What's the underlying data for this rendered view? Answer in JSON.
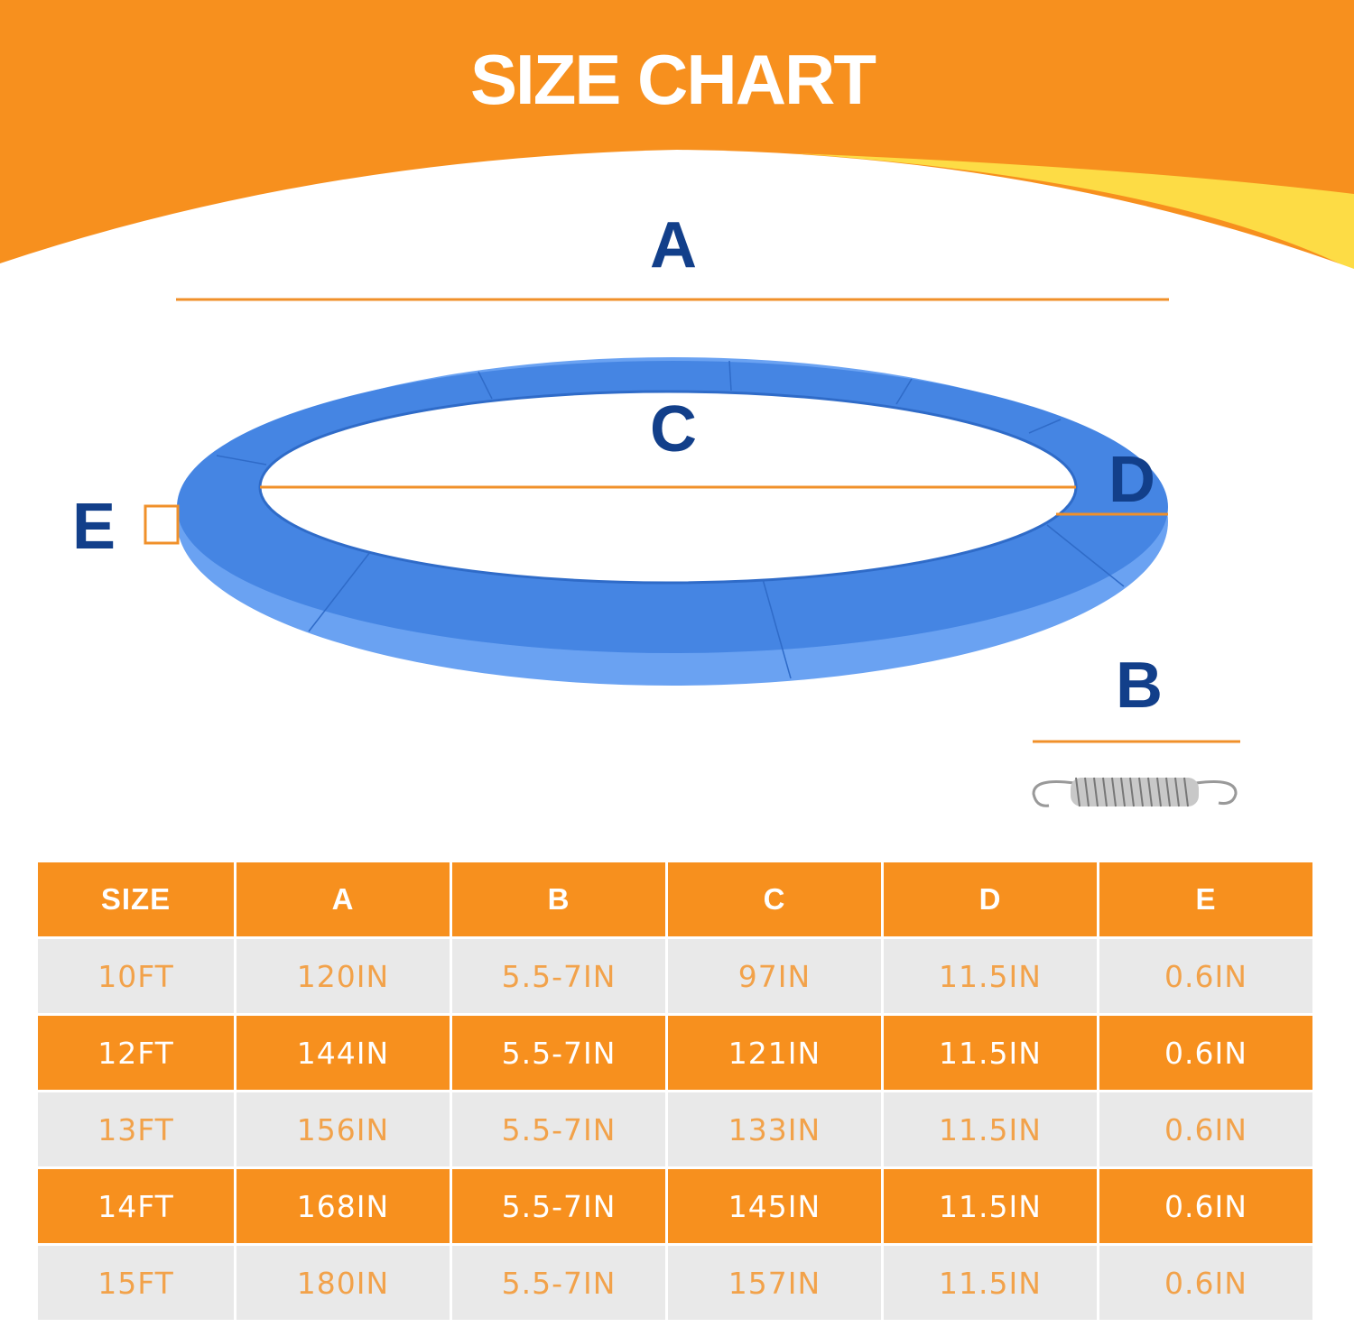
{
  "title": "SIZE CHART",
  "diagram_labels": {
    "a": "A",
    "b": "B",
    "c": "C",
    "d": "D",
    "e": "E"
  },
  "colors": {
    "orange": "#f7901e",
    "yellow": "#fddc45",
    "ring_blue": "#4585e3",
    "label_blue": "#123f8a",
    "row_gray": "#e9e9e9"
  },
  "table": {
    "headers": [
      "SIZE",
      "A",
      "B",
      "C",
      "D",
      "E"
    ],
    "rows": [
      [
        "10FT",
        "120IN",
        "5.5-7IN",
        "97IN",
        "11.5IN",
        "0.6IN"
      ],
      [
        "12FT",
        "144IN",
        "5.5-7IN",
        "121IN",
        "11.5IN",
        "0.6IN"
      ],
      [
        "13FT",
        "156IN",
        "5.5-7IN",
        "133IN",
        "11.5IN",
        "0.6IN"
      ],
      [
        "14FT",
        "168IN",
        "5.5-7IN",
        "145IN",
        "11.5IN",
        "0.6IN"
      ],
      [
        "15FT",
        "180IN",
        "5.5-7IN",
        "157IN",
        "11.5IN",
        "0.6IN"
      ]
    ]
  }
}
